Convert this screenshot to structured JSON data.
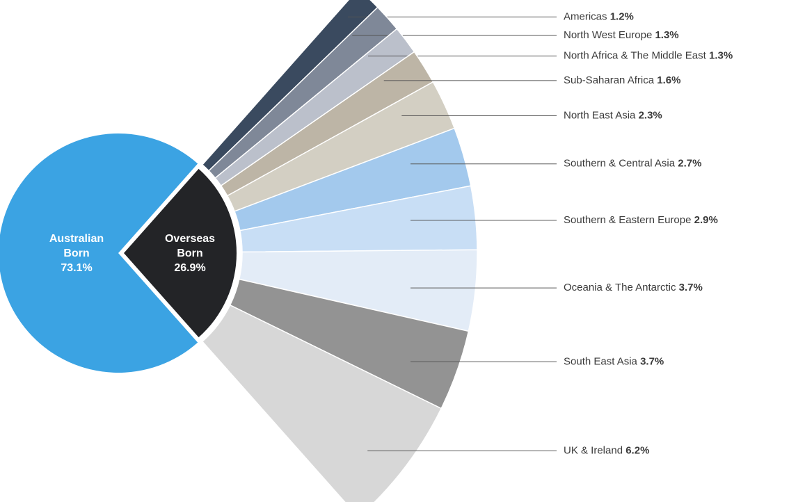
{
  "chart_data": {
    "type": "pie",
    "categories": [
      "Australian Born",
      "Overseas Born"
    ],
    "values": [
      73.1,
      26.9
    ],
    "value_labels": [
      "73.1%",
      "26.9%"
    ],
    "colors": [
      "#3ba3e3",
      "#232427"
    ],
    "breakdown": {
      "categories": [
        "Americas",
        "North West Europe",
        "North Africa & The Middle East",
        "Sub-Saharan Africa",
        "North East Asia",
        "Southern & Central Asia",
        "Southern & Eastern Europe",
        "Oceania & The Antarctic",
        "South East Asia",
        "UK & Ireland"
      ],
      "values": [
        1.2,
        1.3,
        1.3,
        1.6,
        2.3,
        2.7,
        2.9,
        3.7,
        3.7,
        6.2
      ],
      "value_labels": [
        "1.2%",
        "1.3%",
        "1.3%",
        "1.6%",
        "2.3%",
        "2.7%",
        "2.9%",
        "3.7%",
        "3.7%",
        "6.2%"
      ],
      "colors": [
        "#3a4a5f",
        "#7f8898",
        "#bbc0cb",
        "#bdb5a6",
        "#d3cfc3",
        "#a3c9ed",
        "#c8def5",
        "#e3ecf7",
        "#939393",
        "#d7d7d7"
      ]
    }
  }
}
